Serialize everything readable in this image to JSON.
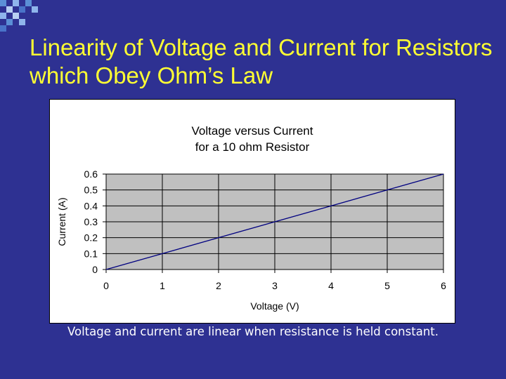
{
  "slide": {
    "title": "Linearity of Voltage and Current for Resistors which Obey Ohm’s Law",
    "caption": "Voltage and current are linear when resistance is held constant.",
    "background_color": "#2e3192",
    "title_color": "#ffff33",
    "caption_color": "#ffffff"
  },
  "chart_data": {
    "type": "line",
    "title_lines": [
      "Voltage versus Current",
      "for a 10 ohm Resistor"
    ],
    "xlabel": "Voltage (V)",
    "ylabel": "Current (A)",
    "x": [
      0,
      1,
      2,
      3,
      4,
      5,
      6
    ],
    "series": [
      {
        "values": [
          0,
          0.1,
          0.2,
          0.3,
          0.4,
          0.5,
          0.6
        ],
        "color": "#000080"
      }
    ],
    "xlim": [
      0,
      6
    ],
    "ylim": [
      0,
      0.6
    ],
    "xticks": [
      "0",
      "1",
      "2",
      "3",
      "4",
      "5",
      "6"
    ],
    "yticks": [
      "0",
      "0.1",
      "0.2",
      "0.3",
      "0.4",
      "0.5",
      "0.6"
    ],
    "grid": true,
    "plot_background": "#c0c0c0",
    "legend": "none"
  }
}
